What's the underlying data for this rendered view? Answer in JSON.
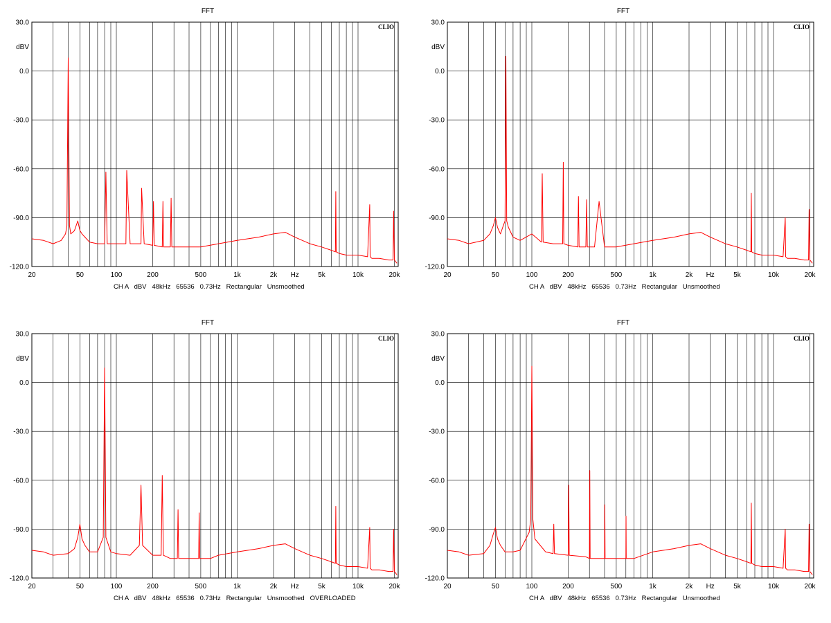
{
  "chart_data": [
    {
      "type": "line",
      "title": "FFT",
      "brand": "CLIO",
      "ylabel": "dBV",
      "xlabel": "Hz",
      "xscale": "log",
      "xlim": [
        20,
        21500
      ],
      "ylim": [
        -120,
        30
      ],
      "grid": true,
      "line_color": "#ff0000",
      "footer": "CH A   dBV   48kHz   65536   0.73Hz   Rectangular   Unsmoothed",
      "y_ticks": [
        "30.0",
        "0.0",
        "-30.0",
        "-60.0",
        "-90.0",
        "-120.0"
      ],
      "x_ticks": [
        "20",
        "50",
        "100",
        "200",
        "500",
        "1k",
        "2k",
        "Hz",
        "5k",
        "10k",
        "20k"
      ],
      "series": [
        {
          "x": [
            20,
            25,
            30,
            35,
            38,
            39,
            40,
            41,
            42,
            45,
            48,
            50,
            52,
            55,
            60,
            70,
            80,
            82,
            84,
            100,
            120,
            122,
            130,
            150,
            160,
            162,
            170,
            200,
            203,
            206,
            240,
            243,
            246,
            280,
            284,
            288,
            330,
            400,
            500,
            700,
            1000,
            1500,
            2000,
            2500,
            3000,
            4000,
            5000,
            6000,
            6500,
            6550,
            6600,
            7000,
            8000,
            10000,
            12000,
            12500,
            12600,
            13000,
            15000,
            18000,
            19500,
            19700,
            20000,
            21000
          ],
          "y": [
            -103,
            -104,
            -106,
            -104,
            -100,
            -95,
            8,
            -95,
            -100,
            -98,
            -92,
            -98,
            -100,
            -102,
            -105,
            -106,
            -106,
            -62,
            -106,
            -106,
            -106,
            -61,
            -106,
            -106,
            -106,
            -72,
            -106,
            -107,
            -80,
            -107,
            -108,
            -80,
            -108,
            -108,
            -78,
            -108,
            -108,
            -108,
            -108,
            -106,
            -104,
            -102,
            -100,
            -99,
            -102,
            -106,
            -108,
            -110,
            -111,
            -74,
            -111,
            -112,
            -113,
            -113,
            -114,
            -82,
            -114,
            -115,
            -115,
            -116,
            -116,
            -86,
            -116,
            -118
          ]
        }
      ]
    },
    {
      "type": "line",
      "title": "FFT",
      "brand": "CLIO",
      "ylabel": "dBV",
      "xlabel": "Hz",
      "xscale": "log",
      "xlim": [
        20,
        21500
      ],
      "ylim": [
        -120,
        30
      ],
      "grid": true,
      "line_color": "#ff0000",
      "footer": "CH A   dBV   48kHz   65536   0.73Hz   Rectangular   Unsmoothed",
      "y_ticks": [
        "30.0",
        "0.0",
        "-30.0",
        "-60.0",
        "-90.0",
        "-120.0"
      ],
      "x_ticks": [
        "20",
        "50",
        "100",
        "200",
        "500",
        "1k",
        "2k",
        "Hz",
        "5k",
        "10k",
        "20k"
      ],
      "series": [
        {
          "x": [
            20,
            25,
            30,
            40,
            45,
            48,
            50,
            52,
            55,
            58,
            60,
            61,
            62,
            64,
            70,
            80,
            100,
            120,
            122,
            124,
            150,
            180,
            182,
            184,
            200,
            240,
            243,
            246,
            280,
            284,
            288,
            330,
            360,
            400,
            500,
            700,
            1000,
            1500,
            2000,
            2500,
            3000,
            4000,
            5000,
            6000,
            6500,
            6550,
            6600,
            7000,
            8000,
            10000,
            12000,
            12500,
            12600,
            13000,
            15000,
            18000,
            19500,
            19700,
            20000,
            21000
          ],
          "y": [
            -103,
            -104,
            -106,
            -104,
            -100,
            -95,
            -90,
            -96,
            -100,
            -95,
            -92,
            9,
            -92,
            -96,
            -102,
            -104,
            -100,
            -105,
            -63,
            -105,
            -106,
            -106,
            -56,
            -106,
            -107,
            -108,
            -77,
            -108,
            -108,
            -79,
            -108,
            -108,
            -80,
            -108,
            -108,
            -106,
            -104,
            -102,
            -100,
            -99,
            -102,
            -106,
            -108,
            -110,
            -111,
            -75,
            -111,
            -112,
            -113,
            -113,
            -114,
            -90,
            -114,
            -115,
            -115,
            -116,
            -116,
            -85,
            -116,
            -118
          ]
        }
      ]
    },
    {
      "type": "line",
      "title": "FFT",
      "brand": "CLIO",
      "ylabel": "dBV",
      "xlabel": "Hz",
      "xscale": "log",
      "xlim": [
        20,
        21500
      ],
      "ylim": [
        -120,
        30
      ],
      "grid": true,
      "line_color": "#ff0000",
      "footer": "CH A   dBV   48kHz   65536   0.73Hz   Rectangular   Unsmoothed   OVERLOADED",
      "y_ticks": [
        "30.0",
        "0.0",
        "-30.0",
        "-60.0",
        "-90.0",
        "-120.0"
      ],
      "x_ticks": [
        "20",
        "50",
        "100",
        "200",
        "500",
        "1k",
        "2k",
        "Hz",
        "5k",
        "10k",
        "20k"
      ],
      "series": [
        {
          "x": [
            20,
            25,
            30,
            40,
            45,
            48,
            50,
            52,
            55,
            60,
            70,
            78,
            80,
            82,
            90,
            100,
            130,
            155,
            160,
            165,
            200,
            235,
            240,
            245,
            280,
            320,
            324,
            328,
            400,
            480,
            485,
            490,
            600,
            700,
            1000,
            1500,
            2000,
            2500,
            3000,
            4000,
            5000,
            6000,
            6500,
            6550,
            6600,
            7000,
            8000,
            10000,
            12000,
            12500,
            12600,
            13000,
            15000,
            18000,
            19500,
            19700,
            20000,
            21000
          ],
          "y": [
            -103,
            -104,
            -106,
            -105,
            -102,
            -95,
            -87,
            -96,
            -100,
            -104,
            -104,
            -95,
            9,
            -95,
            -104,
            -105,
            -106,
            -100,
            -63,
            -100,
            -106,
            -106,
            -57,
            -106,
            -108,
            -108,
            -78,
            -108,
            -108,
            -108,
            -80,
            -108,
            -108,
            -106,
            -104,
            -102,
            -100,
            -99,
            -102,
            -106,
            -108,
            -110,
            -111,
            -76,
            -111,
            -112,
            -113,
            -113,
            -114,
            -89,
            -114,
            -115,
            -115,
            -116,
            -116,
            -90,
            -116,
            -118
          ]
        }
      ]
    },
    {
      "type": "line",
      "title": "FFT",
      "brand": "CLIO",
      "ylabel": "dBV",
      "xlabel": "Hz",
      "xscale": "log",
      "xlim": [
        20,
        21500
      ],
      "ylim": [
        -120,
        30
      ],
      "grid": true,
      "line_color": "#ff0000",
      "footer": "CH A   dBV   48kHz   65536   0.73Hz   Rectangular   Unsmoothed",
      "y_ticks": [
        "30.0",
        "0.0",
        "-30.0",
        "-60.0",
        "-90.0",
        "-120.0"
      ],
      "x_ticks": [
        "20",
        "50",
        "100",
        "200",
        "500",
        "1k",
        "2k",
        "Hz",
        "5k",
        "10k",
        "20k"
      ],
      "series": [
        {
          "x": [
            20,
            25,
            30,
            40,
            45,
            48,
            50,
            52,
            55,
            60,
            70,
            80,
            95,
            98,
            100,
            102,
            106,
            130,
            150,
            152,
            154,
            200,
            202,
            204,
            280,
            300,
            302,
            304,
            350,
            400,
            402,
            404,
            500,
            600,
            602,
            604,
            700,
            1000,
            1500,
            2000,
            2500,
            3000,
            4000,
            5000,
            6000,
            6500,
            6550,
            6600,
            7000,
            8000,
            10000,
            12000,
            12500,
            12600,
            13000,
            15000,
            18000,
            19500,
            19700,
            20000,
            21000
          ],
          "y": [
            -103,
            -104,
            -106,
            -105,
            -100,
            -93,
            -89,
            -96,
            -100,
            -104,
            -104,
            -103,
            -92,
            -84,
            10,
            -84,
            -96,
            -104,
            -105,
            -87,
            -105,
            -106,
            -63,
            -106,
            -107,
            -108,
            -54,
            -108,
            -108,
            -108,
            -75,
            -108,
            -108,
            -108,
            -82,
            -108,
            -108,
            -104,
            -102,
            -100,
            -99,
            -102,
            -106,
            -108,
            -110,
            -111,
            -74,
            -111,
            -112,
            -113,
            -113,
            -114,
            -90,
            -114,
            -115,
            -115,
            -116,
            -116,
            -87,
            -116,
            -118
          ]
        }
      ]
    }
  ]
}
